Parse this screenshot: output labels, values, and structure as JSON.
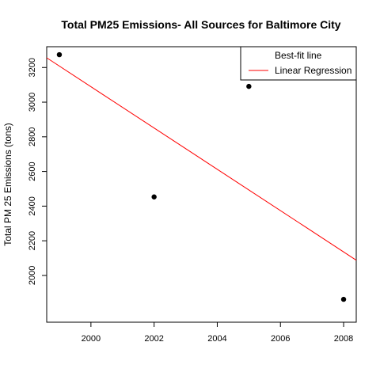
{
  "chart_data": {
    "type": "scatter",
    "title": "Total PM25 Emissions- All Sources for Baltimore City",
    "xlabel": "",
    "ylabel": "Total PM 25 Emissions (tons)",
    "xlim": [
      1998.6,
      2008.4
    ],
    "ylim": [
      1730,
      3320
    ],
    "xticks": [
      2000,
      2002,
      2004,
      2006,
      2008
    ],
    "yticks": [
      2000,
      2200,
      2400,
      2600,
      2800,
      3000,
      3200
    ],
    "points": {
      "x": [
        1999,
        2002,
        2005,
        2008
      ],
      "y": [
        3274,
        2453,
        3091,
        1862
      ]
    },
    "regression_line": {
      "name": "Linear Regression",
      "color": "#ff0000",
      "x": [
        1998.6,
        2008.4
      ],
      "y": [
        3256,
        2088
      ]
    },
    "legend": {
      "position": "top-right",
      "entries": [
        {
          "label": "Best-fit line",
          "symbol": "none"
        },
        {
          "label": "Linear Regression",
          "symbol": "line",
          "color": "#ff0000"
        }
      ]
    },
    "grid": false
  }
}
